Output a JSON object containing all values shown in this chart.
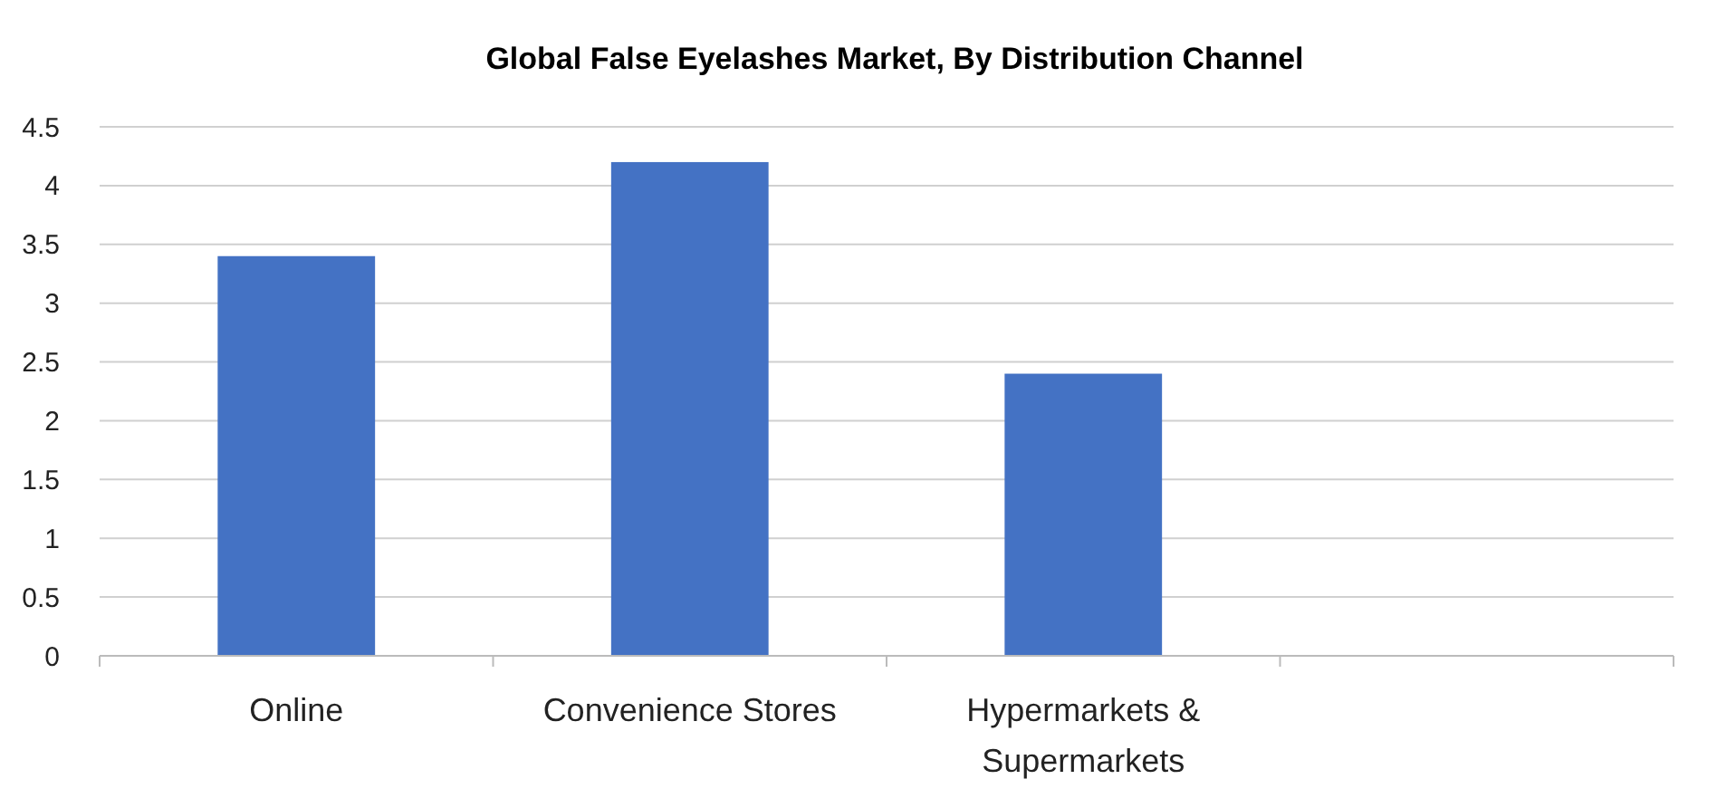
{
  "chart_data": {
    "type": "bar",
    "title": "Global False Eyelashes Market, By Distribution Channel",
    "categories": [
      "Online",
      "Convenience Stores",
      "Hypermarkets & Supermarkets",
      null
    ],
    "values": [
      3.4,
      4.2,
      2.4,
      null
    ],
    "color": "#4472c4",
    "ylim": [
      0,
      4.5
    ],
    "yticks": [
      0,
      0.5,
      1,
      1.5,
      2,
      2.5,
      3,
      3.5,
      4,
      4.5
    ],
    "grid": "y"
  }
}
